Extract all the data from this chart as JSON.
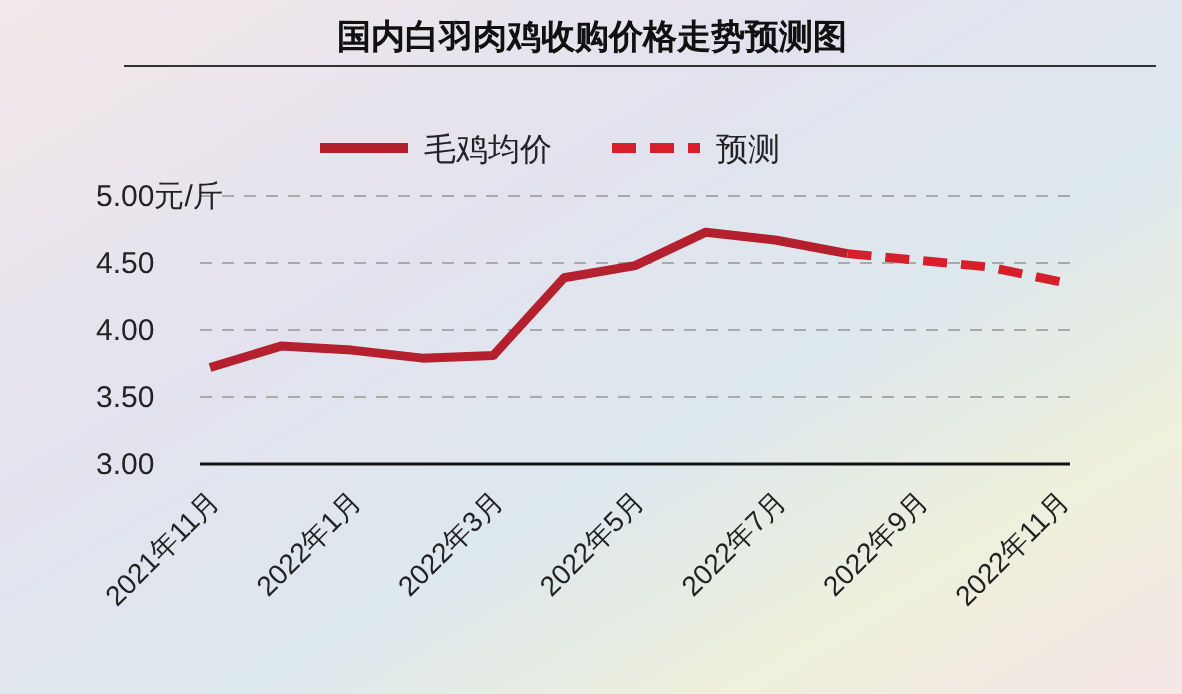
{
  "chart_data": {
    "type": "line",
    "title": "国内白羽肉鸡收购价格走势预测图",
    "categories": [
      "2021年11月",
      null,
      "2022年1月",
      null,
      "2022年3月",
      null,
      "2022年5月",
      null,
      "2022年7月",
      null,
      "2022年9月",
      null,
      "2022年11月"
    ],
    "series": [
      {
        "name": "毛鸡均价",
        "color": "#b5202e",
        "line_style": "solid",
        "values": [
          3.72,
          3.88,
          3.85,
          3.79,
          3.81,
          4.39,
          4.48,
          4.73,
          4.67,
          4.57,
          null,
          null,
          null
        ]
      },
      {
        "name": "预测",
        "color": "#d71f2b",
        "line_style": "dashed",
        "values": [
          null,
          null,
          null,
          null,
          null,
          null,
          null,
          null,
          null,
          4.57,
          4.52,
          4.47,
          4.36
        ]
      }
    ],
    "ylim": [
      3,
      5
    ],
    "yticks": [
      "3.00",
      {
        "value": 3.5,
        "label": "3.50"
      },
      {
        "value": 4,
        "label": "4.00"
      },
      {
        "value": 4.5,
        "label": "4.50"
      },
      {
        "value": 5,
        "label": "5.00元/斤"
      }
    ],
    "grid": "y",
    "legend": "top",
    "marker": "none"
  }
}
